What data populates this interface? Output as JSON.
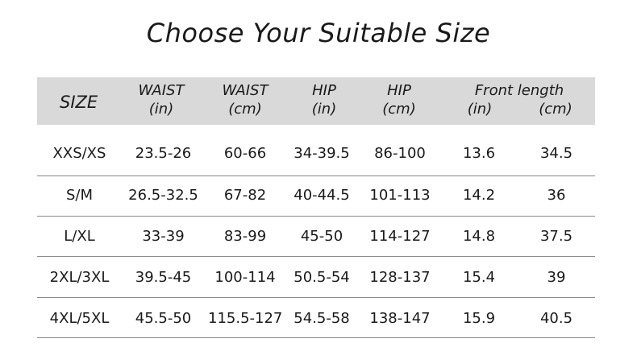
{
  "title": "Choose Your Suitable Size",
  "table": {
    "headers": {
      "size": "SIZE",
      "waist_in": [
        "WAIST",
        "(in)"
      ],
      "waist_cm": [
        "WAIST",
        "(cm)"
      ],
      "hip_in": [
        "HIP",
        "(in)"
      ],
      "hip_cm": [
        "HIP",
        "(cm)"
      ],
      "front_length": "Front length",
      "front_in": "(in)",
      "front_cm": "(cm)"
    },
    "rows": [
      [
        "XXS/XS",
        "23.5-26",
        "60-66",
        "34-39.5",
        "86-100",
        "13.6",
        "34.5"
      ],
      [
        "S/M",
        "26.5-32.5",
        "67-82",
        "40-44.5",
        "101-113",
        "14.2",
        "36"
      ],
      [
        "L/XL",
        "33-39",
        "83-99",
        "45-50",
        "114-127",
        "14.8",
        "37.5"
      ],
      [
        "2XL/3XL",
        "39.5-45",
        "100-114",
        "50.5-54",
        "128-137",
        "15.4",
        "39"
      ],
      [
        "4XL/5XL",
        "45.5-50",
        "115.5-127",
        "54.5-58",
        "138-147",
        "15.9",
        "40.5"
      ]
    ]
  },
  "colors": {
    "header_band": "#d9d9d9",
    "text": "#1a1a1a",
    "divider": "#8a8a8a"
  }
}
